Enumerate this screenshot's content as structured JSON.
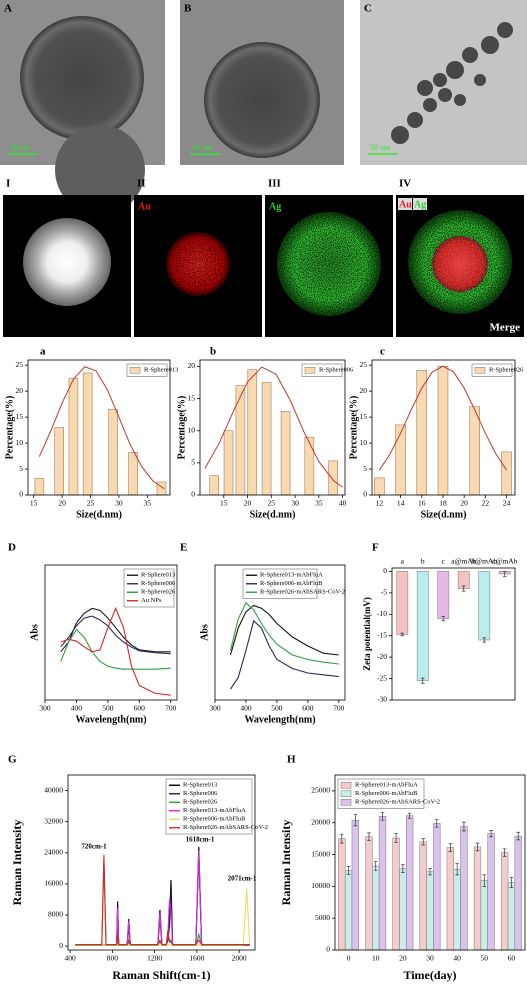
{
  "image_panels": [
    {
      "label": "A",
      "scale_bar": "20 nm"
    },
    {
      "label": "B",
      "scale_bar": "20 nm"
    },
    {
      "label": "C",
      "scale_bar": "50 nm"
    }
  ],
  "eds_panels": [
    {
      "label": "I"
    },
    {
      "label": "II",
      "element": "Au"
    },
    {
      "label": "III",
      "element": "Ag"
    },
    {
      "label": "IV",
      "elements": [
        "Au",
        "Ag"
      ],
      "caption": "Merge"
    }
  ],
  "chart_data": [
    {
      "type": "bar",
      "panel_label": "a",
      "x_label": "Size(d.nm)",
      "y_label": "Percentage(%)",
      "x": [
        16,
        19.5,
        22,
        24.5,
        29,
        32.5,
        37.5
      ],
      "series": [
        {
          "name": "R-Sphere013",
          "color": "#f9d9b0",
          "values": [
            3.2,
            13,
            22.5,
            23.5,
            16.5,
            8.2,
            2.5
          ]
        }
      ],
      "fit": {
        "color": "#c0392b",
        "x": [
          16,
          18,
          20,
          22,
          24,
          26,
          28,
          30,
          32,
          34,
          36,
          38
        ],
        "values": [
          7.4,
          12.3,
          17.7,
          22.3,
          24.7,
          23.9,
          20.2,
          15.0,
          9.7,
          5.5,
          2.7,
          1.2
        ]
      },
      "xlim": [
        14,
        39
      ],
      "xticks": [
        15,
        20,
        25,
        30,
        35
      ],
      "ylim": [
        0,
        26
      ],
      "yticks": [
        0,
        5,
        10,
        15,
        20,
        25
      ],
      "legend": "upper right"
    },
    {
      "type": "bar",
      "panel_label": "b",
      "x_label": "Size(d.nm)",
      "y_label": "Percentage(%)",
      "x": [
        13,
        16,
        18.5,
        21,
        24,
        28,
        33,
        38
      ],
      "series": [
        {
          "name": "R-Sphere006",
          "color": "#f9d9b0",
          "values": [
            3,
            10,
            17,
            19.5,
            17.5,
            13,
            9,
            5.3
          ]
        }
      ],
      "fit": {
        "color": "#c0392b",
        "x": [
          11,
          14,
          17,
          20,
          23,
          26,
          29,
          32,
          35,
          38,
          40
        ],
        "values": [
          4.1,
          8.0,
          13.0,
          17.6,
          19.9,
          18.8,
          14.7,
          9.6,
          5.2,
          2.3,
          1.2
        ]
      },
      "xlim": [
        10,
        40.5
      ],
      "xticks": [
        15,
        20,
        25,
        30,
        35,
        40
      ],
      "ylim": [
        0,
        21
      ],
      "yticks": [
        0,
        5,
        10,
        15,
        20
      ],
      "legend": "upper right"
    },
    {
      "type": "bar",
      "panel_label": "c",
      "x_label": "Size(d.nm)",
      "y_label": "Percentage(%)",
      "x": [
        12,
        14,
        16,
        18,
        21,
        24
      ],
      "series": [
        {
          "name": "R-Sphere026",
          "color": "#f9d9b0",
          "values": [
            3.3,
            13.5,
            24,
            24.8,
            17,
            8.3
          ]
        }
      ],
      "fit": {
        "color": "#c0392b",
        "x": [
          12,
          13,
          14,
          15,
          16,
          17,
          18,
          19,
          20,
          21,
          22,
          23,
          24
        ],
        "values": [
          4.8,
          7.9,
          11.9,
          16.4,
          20.6,
          23.7,
          24.8,
          23.7,
          20.6,
          16.4,
          11.9,
          7.9,
          4.8
        ]
      },
      "xlim": [
        11.3,
        24.8
      ],
      "xticks": [
        12,
        14,
        16,
        18,
        20,
        22,
        24
      ],
      "ylim": [
        0,
        26
      ],
      "yticks": [
        0,
        5,
        10,
        15,
        20,
        25
      ],
      "legend": "upper right"
    },
    {
      "type": "line",
      "panel_label": "D",
      "x_label": "Wavelength(nm)",
      "y_label": "Abs",
      "x": [
        350,
        375,
        400,
        425,
        450,
        475,
        500,
        525,
        550,
        575,
        600,
        650,
        700
      ],
      "series": [
        {
          "name": "R-Sphere013",
          "color": "#1a1a1a",
          "values": [
            0.45,
            0.55,
            0.75,
            0.85,
            0.9,
            0.88,
            0.8,
            0.7,
            0.6,
            0.52,
            0.47,
            0.45,
            0.45
          ]
        },
        {
          "name": "R-Sphere006",
          "color": "#2b2b6b",
          "values": [
            0.5,
            0.6,
            0.72,
            0.8,
            0.82,
            0.78,
            0.72,
            0.62,
            0.55,
            0.5,
            0.46,
            0.44,
            0.43
          ]
        },
        {
          "name": "R-Sphere026",
          "color": "#2e9e44",
          "values": [
            0.35,
            0.55,
            0.68,
            0.6,
            0.45,
            0.35,
            0.3,
            0.28,
            0.27,
            0.27,
            0.27,
            0.27,
            0.28
          ]
        },
        {
          "name": "Au NPs",
          "color": "#d62728",
          "values": [
            0.55,
            0.58,
            0.56,
            0.5,
            0.45,
            0.47,
            0.7,
            0.9,
            0.7,
            0.3,
            0.1,
            0.02,
            0.0
          ]
        }
      ],
      "xlim": [
        300,
        720
      ],
      "xticks": [
        300,
        400,
        500,
        600,
        700
      ],
      "ylim": [
        -0.05,
        1.35
      ],
      "legend": "upper right"
    },
    {
      "type": "line",
      "panel_label": "E",
      "x_label": "Wavelength(nm)",
      "y_label": "Abs",
      "x": [
        350,
        375,
        400,
        425,
        450,
        475,
        500,
        550,
        600,
        650,
        700
      ],
      "series": [
        {
          "name": "R-Sphere013-mAbFluA",
          "color": "#111111",
          "values": [
            0.5,
            0.8,
            0.98,
            1.05,
            1.02,
            0.95,
            0.85,
            0.7,
            0.6,
            0.52,
            0.5
          ]
        },
        {
          "name": "R-Sphere006-mAbFluB",
          "color": "#2a2a5a",
          "values": [
            0.12,
            0.25,
            0.55,
            0.88,
            0.8,
            0.6,
            0.45,
            0.35,
            0.3,
            0.28,
            0.26
          ]
        },
        {
          "name": "R-Sphere026-mAbSARS-CoV-2",
          "color": "#2e9e44",
          "values": [
            0.55,
            0.9,
            1.08,
            1.0,
            0.85,
            0.72,
            0.62,
            0.5,
            0.45,
            0.42,
            0.4
          ]
        }
      ],
      "xlim": [
        300,
        720
      ],
      "xticks": [
        300,
        400,
        500,
        600,
        700
      ],
      "ylim": [
        0,
        1.5
      ],
      "legend": "upper center"
    },
    {
      "type": "bar",
      "panel_label": "F",
      "y_label": "Zeta potential(mV)",
      "xaxis": "top",
      "categories": [
        "a",
        "b",
        "c",
        "a@mAb",
        "b@mAb",
        "c@mAb"
      ],
      "values": [
        -14.7,
        -25.5,
        -11,
        -4,
        -16,
        -0.6
      ],
      "errors": [
        0.3,
        0.6,
        0.5,
        0.6,
        0.5,
        0.6
      ],
      "colors": [
        "#f4c2c2",
        "#b9ecec",
        "#e6b8e6",
        "#f4c2c2",
        "#b9ecec",
        "#e6b8e6"
      ],
      "ylim": [
        -30,
        0.8
      ],
      "yticks": [
        0,
        -5,
        -10,
        -15,
        -20,
        -25,
        -30
      ]
    },
    {
      "type": "line",
      "panel_label": "G",
      "x_label": "Raman Shift(cm-1)",
      "y_label": "Raman Intensity",
      "x": [
        450,
        600,
        700,
        720,
        740,
        800,
        840,
        850,
        860,
        940,
        955,
        970,
        1230,
        1250,
        1270,
        1310,
        1325,
        1340,
        1355,
        1370,
        1590,
        1618,
        1645,
        2040,
        2071,
        2100
      ],
      "series": [
        {
          "name": "R-Sphere013",
          "color": "#000000",
          "values": [
            300,
            300,
            300,
            300,
            300,
            300,
            300,
            11500,
            300,
            300,
            7000,
            300,
            300,
            9300,
            300,
            300,
            2000,
            6000,
            17000,
            300,
            300,
            25500,
            300,
            300,
            300,
            300
          ]
        },
        {
          "name": "R-Sphere006",
          "color": "#1f1f5f",
          "values": [
            250,
            250,
            250,
            250,
            250,
            250,
            250,
            9000,
            250,
            250,
            5000,
            250,
            250,
            7000,
            250,
            250,
            1500,
            5000,
            14000,
            250,
            250,
            23000,
            250,
            250,
            250,
            250
          ]
        },
        {
          "name": "R-Sphere026",
          "color": "#2ca02c",
          "values": [
            200,
            200,
            200,
            22000,
            200,
            200,
            200,
            1500,
            200,
            200,
            1000,
            200,
            200,
            1200,
            200,
            200,
            3500,
            1000,
            1500,
            200,
            200,
            3000,
            200,
            200,
            200,
            200
          ]
        },
        {
          "name": "R-Sphere013-mAbFluA",
          "color": "#d62ad6",
          "values": [
            350,
            350,
            350,
            350,
            350,
            350,
            350,
            10000,
            350,
            350,
            6500,
            350,
            350,
            8500,
            350,
            350,
            2500,
            12000,
            9000,
            350,
            350,
            24500,
            350,
            350,
            350,
            350
          ]
        },
        {
          "name": "R-Sphere006-mAbFluB",
          "color": "#e8dc6a",
          "values": [
            300,
            300,
            300,
            300,
            300,
            300,
            300,
            300,
            300,
            300,
            300,
            300,
            300,
            300,
            300,
            300,
            300,
            300,
            300,
            300,
            300,
            300,
            300,
            300,
            15000,
            300
          ]
        },
        {
          "name": "R-Sphere026-mAbSARS-CoV-2",
          "color": "#d62728",
          "values": [
            400,
            400,
            400,
            23500,
            400,
            400,
            400,
            3000,
            400,
            400,
            1500,
            400,
            400,
            1500,
            400,
            400,
            4000,
            1500,
            1000,
            400,
            400,
            1500,
            400,
            400,
            400,
            400
          ]
        }
      ],
      "annotations": [
        "720cm-1",
        "1618cm-1",
        "2071cm-1"
      ],
      "xlim": [
        380,
        2150
      ],
      "xticks": [
        400,
        800,
        1200,
        1600,
        2000
      ],
      "ylim": [
        -1000,
        44000
      ],
      "yticks": [
        0,
        8000,
        16000,
        24000,
        32000,
        40000
      ],
      "legend": "upper right"
    },
    {
      "type": "bar",
      "panel_label": "H",
      "x_label": "Time(day)",
      "y_label": "Raman Intensity",
      "categories": [
        "0",
        "10",
        "20",
        "30",
        "40",
        "50",
        "60"
      ],
      "series": [
        {
          "name": "R-Sphere013-mAbFluA",
          "color": "#f4cccc",
          "values": [
            17500,
            17800,
            17600,
            17000,
            16100,
            16200,
            15300
          ],
          "errors": [
            700,
            600,
            700,
            500,
            600,
            600,
            600
          ]
        },
        {
          "name": "R-Sphere006-mAbFluB",
          "color": "#c9ece8",
          "values": [
            12500,
            13200,
            12800,
            12300,
            12700,
            10900,
            10600
          ],
          "errors": [
            600,
            700,
            600,
            500,
            900,
            900,
            800
          ]
        },
        {
          "name": "R-Sphere026-mAbSARS-CoV-2",
          "color": "#d9c2ec",
          "values": [
            20400,
            21000,
            21100,
            19900,
            19400,
            18300,
            17900
          ],
          "errors": [
            900,
            600,
            400,
            600,
            700,
            500,
            600
          ]
        }
      ],
      "ylim": [
        0,
        27500
      ],
      "yticks": [
        0,
        5000,
        10000,
        15000,
        20000,
        25000
      ],
      "legend": "upper left"
    }
  ]
}
